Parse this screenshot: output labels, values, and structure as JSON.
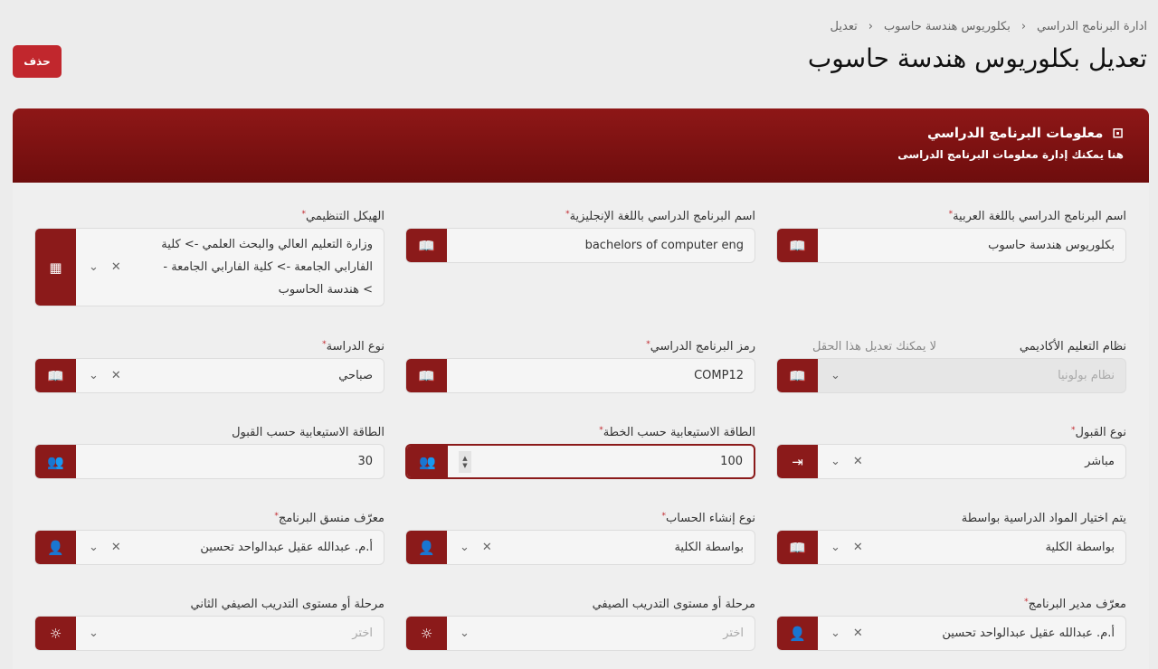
{
  "breadcrumb": [
    "ادارة البرنامج الدراسي",
    "بكلوريوس هندسة حاسوب",
    "تعديل"
  ],
  "page_title": "تعديل بكلوريوس هندسة حاسوب",
  "delete_label": "حذف",
  "section": {
    "title": "معلومات البرنامج الدراسي",
    "subtitle": "هنا يمكنك إدارة معلومات البرنامج الدراسى"
  },
  "accent": "#8b1a1a",
  "fields": {
    "name_ar": {
      "label": "اسم البرنامج الدراسي باللغة العربية",
      "value": "بكلوريوس هندسة حاسوب"
    },
    "name_en": {
      "label": "اسم البرنامج الدراسي باللغة الإنجليزية",
      "value": "bachelors of computer eng"
    },
    "org": {
      "label": "الهيكل التنظيمي",
      "value": "وزارة التعليم العالي والبحث العلمي -> كلية الفارابي الجامعة -> كلية الفارابي الجامعة -> هندسة الحاسوب"
    },
    "system": {
      "label": "نظام التعليم الأكاديمي",
      "note": "لا يمكنك تعديل هذا الحقل",
      "value": "نظام بولونيا"
    },
    "code": {
      "label": "رمز البرنامج الدراسي",
      "value": "COMP12"
    },
    "study_type": {
      "label": "نوع الدراسة",
      "value": "صباحي"
    },
    "admission": {
      "label": "نوع القبول",
      "value": "مباشر"
    },
    "cap_plan": {
      "label": "الطاقة الاستيعابية حسب الخطة",
      "value": "100"
    },
    "cap_admit": {
      "label": "الطاقة الاستيعابية حسب القبول",
      "value": "30"
    },
    "courses_by": {
      "label": "يتم اختيار المواد الدراسية بواسطة",
      "value": "بواسطة الكلية"
    },
    "account": {
      "label": "نوع إنشاء الحساب",
      "value": "بواسطة الكلية"
    },
    "coordinator": {
      "label": "معرّف منسق البرنامج",
      "value": "أ.م. عبدالله عقيل عبدالواحد تحسين"
    },
    "manager": {
      "label": "معرّف مدير البرنامج",
      "value": "أ.م. عبدالله عقيل عبدالواحد تحسين"
    },
    "training1": {
      "label": "مرحلة أو مستوى التدريب الصيفي",
      "placeholder": "اختر"
    },
    "training2": {
      "label": "مرحلة أو مستوى التدريب الصيفي الثاني",
      "placeholder": "اختر"
    }
  }
}
